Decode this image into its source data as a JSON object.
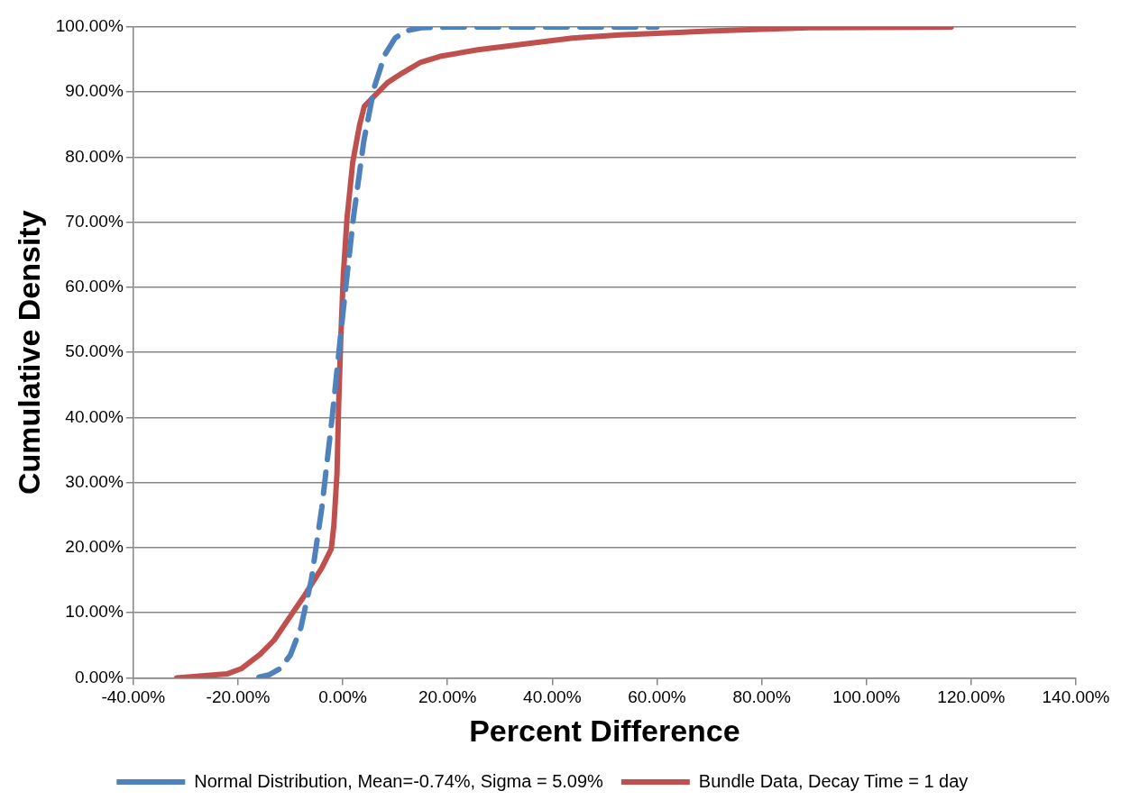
{
  "chart_data": {
    "type": "line",
    "xlabel": "Percent Difference",
    "ylabel": "Cumulative Density",
    "xlim": [
      -40,
      140
    ],
    "xticks": [
      {
        "value": -40,
        "label": "-40.00%"
      },
      {
        "value": -20,
        "label": "-20.00%"
      },
      {
        "value": 0,
        "label": "0.00%"
      },
      {
        "value": 20,
        "label": "20.00%"
      },
      {
        "value": 40,
        "label": "40.00%"
      },
      {
        "value": 60,
        "label": "60.00%"
      },
      {
        "value": 80,
        "label": "80.00%"
      },
      {
        "value": 100,
        "label": "100.00%"
      },
      {
        "value": 120,
        "label": "120.00%"
      },
      {
        "value": 140,
        "label": "140.00%"
      }
    ],
    "ylim": [
      0,
      100
    ],
    "yticks": [
      {
        "value": 0,
        "label": "0.00%"
      },
      {
        "value": 10,
        "label": "10.00%"
      },
      {
        "value": 20,
        "label": "20.00%"
      },
      {
        "value": 30,
        "label": "30.00%"
      },
      {
        "value": 40,
        "label": "40.00%"
      },
      {
        "value": 50,
        "label": "50.00%"
      },
      {
        "value": 60,
        "label": "60.00%"
      },
      {
        "value": 70,
        "label": "70.00%"
      },
      {
        "value": 80,
        "label": "80.00%"
      },
      {
        "value": 90,
        "label": "90.00%"
      },
      {
        "value": 100,
        "label": "100.00%"
      }
    ],
    "grid": "y",
    "legend": "bottom",
    "marker": "none",
    "series": [
      {
        "name": "Normal Distribution, Mean=-0.74%, Sigma = 5.09%",
        "color": "#4f81bd",
        "line_style": "dashed",
        "x": [
          -16,
          -14,
          -12,
          -10,
          -8,
          -6,
          -4,
          -2,
          0,
          2,
          4,
          6,
          8,
          10,
          12,
          15,
          20,
          60
        ],
        "values": [
          0.1,
          0.5,
          1.4,
          3.5,
          7.7,
          15.1,
          26.1,
          40.2,
          55.8,
          70.5,
          82.4,
          90.7,
          95.7,
          98.3,
          99.4,
          99.9,
          100,
          100
        ]
      },
      {
        "name": "Bundle Data, Decay Time = 1 day",
        "color": "#c0504d",
        "line_style": "solid",
        "x": [
          -31.7,
          -22.1,
          -19.4,
          -15.8,
          -13.1,
          -10.4,
          -7.6,
          -4.0,
          -2.2,
          -1.7,
          -1.1,
          -0.8,
          -0.4,
          0.1,
          0.8,
          1.9,
          3.2,
          4.1,
          5.9,
          8.6,
          11.3,
          14.9,
          18.6,
          25.8,
          34.8,
          43.9,
          52.9,
          71.0,
          89.0,
          116.2
        ],
        "values": [
          0,
          0.6,
          1.4,
          3.6,
          5.8,
          9,
          12.3,
          16.9,
          19.8,
          23.4,
          31.4,
          41.5,
          51.7,
          61.8,
          70.5,
          79.2,
          84.9,
          87.8,
          89.3,
          91.5,
          92.9,
          94.6,
          95.5,
          96.5,
          97.4,
          98.3,
          98.8,
          99.4,
          99.9,
          100
        ]
      }
    ]
  }
}
